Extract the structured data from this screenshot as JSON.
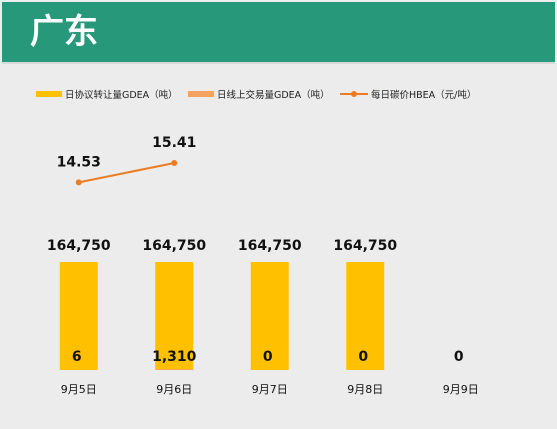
{
  "header": {
    "title": "广东"
  },
  "colors": {
    "header_bg": "#27987a",
    "agreement": "#ffc000",
    "online": "#f4a460",
    "price": "#ec7c22"
  },
  "chart_data": {
    "type": "bar",
    "categories": [
      "9月5日",
      "9月6日",
      "9月7日",
      "9月8日",
      "9月9日"
    ],
    "series": [
      {
        "name": "日协议转让量GDEA（吨）",
        "kind": "bar",
        "values": [
          164750,
          164750,
          164750,
          164750,
          null
        ],
        "labels": [
          "164,750",
          "164,750",
          "164,750",
          "164,750",
          ""
        ]
      },
      {
        "name": "日线上交易量GDEA（吨）",
        "kind": "bar",
        "values": [
          6,
          1310,
          0,
          0,
          0
        ],
        "labels": [
          "6",
          "1,310",
          "0",
          "0",
          "0"
        ]
      },
      {
        "name": "每日碳价HBEA（元/吨）",
        "kind": "line",
        "values": [
          14.53,
          15.41,
          null,
          null,
          null
        ],
        "labels": [
          "14.53",
          "15.41",
          "",
          "",
          ""
        ]
      }
    ],
    "legend_position": "top",
    "grid": false
  }
}
